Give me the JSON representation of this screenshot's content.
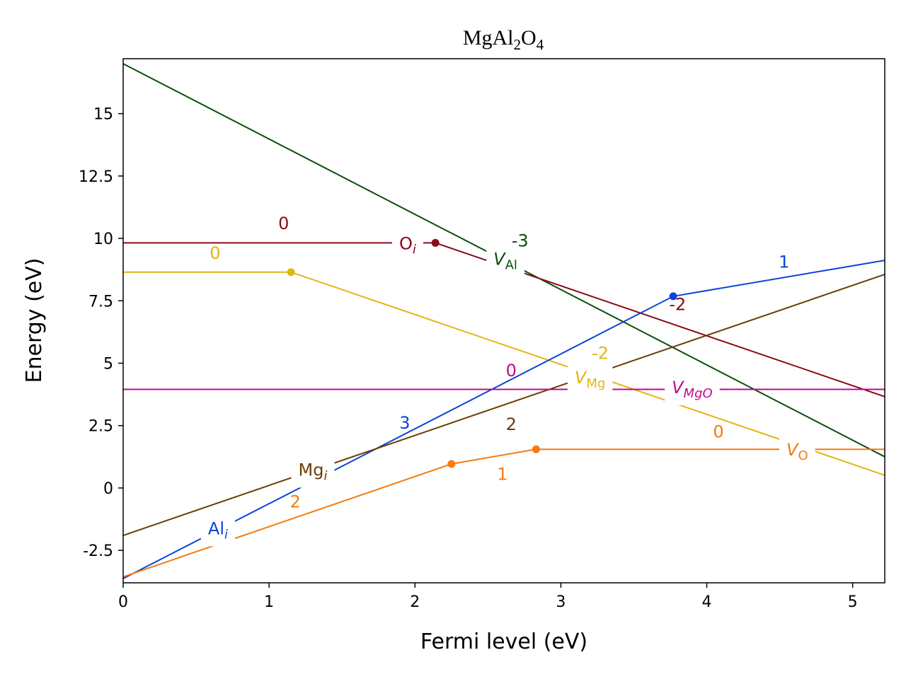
{
  "chart_data": {
    "type": "line",
    "title": {
      "base": "MgAl",
      "sub1": "2",
      "mid": "O",
      "sub2": "4"
    },
    "xlabel": "Fermi level (eV)",
    "ylabel": "Energy (eV)",
    "xlim": [
      0,
      5.22
    ],
    "ylim": [
      -3.8,
      17.2
    ],
    "xticks": [
      0,
      1,
      2,
      3,
      4,
      5
    ],
    "xtick_labels": [
      "0",
      "1",
      "2",
      "3",
      "4",
      "5"
    ],
    "yticks": [
      -2.5,
      0,
      2.5,
      5,
      7.5,
      10,
      12.5,
      15
    ],
    "ytick_labels": [
      "-2.5",
      "0",
      "2.5",
      "5",
      "7.5",
      "10",
      "12.5",
      "15"
    ],
    "grid": false,
    "legend": "none",
    "series": [
      {
        "id": "V_Al",
        "name": {
          "main": "V",
          "sub": "Al",
          "italic_main": true,
          "italic_sub": false
        },
        "color": "#0b4f0b",
        "points": [
          [
            0,
            17.0
          ],
          [
            5.22,
            1.25
          ]
        ],
        "transitions": [],
        "label_at": [
          2.62,
          9.2
        ],
        "charges": [
          {
            "text": "-3",
            "at": [
              2.72,
              9.9
            ]
          }
        ]
      },
      {
        "id": "O_i",
        "name": {
          "main": "O",
          "sub": "i",
          "italic_main": false,
          "italic_sub": true
        },
        "color": "#8b0a1a",
        "points": [
          [
            0,
            9.82
          ],
          [
            2.14,
            9.82
          ],
          [
            5.22,
            3.66
          ]
        ],
        "transitions": [
          [
            2.14,
            9.82
          ]
        ],
        "label_at": [
          1.95,
          9.82
        ],
        "charges": [
          {
            "text": "0",
            "at": [
              1.1,
              10.6
            ]
          },
          {
            "text": "-2",
            "at": [
              3.8,
              7.35
            ]
          }
        ]
      },
      {
        "id": "V_Mg",
        "name": {
          "main": "V",
          "sub": "Mg",
          "italic_main": true,
          "italic_sub": false
        },
        "color": "#e3b511",
        "points": [
          [
            0,
            8.65
          ],
          [
            1.15,
            8.65
          ],
          [
            5.22,
            0.51
          ]
        ],
        "transitions": [
          [
            1.15,
            8.65
          ]
        ],
        "label_at": [
          3.2,
          4.45
        ],
        "charges": [
          {
            "text": "0",
            "at": [
              0.63,
              9.4
            ]
          },
          {
            "text": "-2",
            "at": [
              3.27,
              5.4
            ]
          }
        ]
      },
      {
        "id": "Al_i",
        "name": {
          "main": "Al",
          "sub": "i",
          "italic_main": false,
          "italic_sub": true
        },
        "color": "#0c44d8",
        "points": [
          [
            0,
            -3.63
          ],
          [
            3.77,
            7.68
          ],
          [
            5.22,
            9.12
          ]
        ],
        "transitions": [
          [
            3.77,
            7.68
          ]
        ],
        "label_at": [
          0.65,
          -1.6
        ],
        "charges": [
          {
            "text": "3",
            "at": [
              1.93,
              2.6
            ]
          },
          {
            "text": "1",
            "at": [
              4.53,
              9.05
            ]
          }
        ]
      },
      {
        "id": "Mg_i",
        "name": {
          "main": "Mg",
          "sub": "i",
          "italic_main": false,
          "italic_sub": true
        },
        "color": "#6b3d06",
        "points": [
          [
            0,
            -1.9
          ],
          [
            5.22,
            8.56
          ]
        ],
        "transitions": [],
        "label_at": [
          1.3,
          0.75
        ],
        "charges": [
          {
            "text": "2",
            "at": [
              2.66,
              2.55
            ]
          }
        ]
      },
      {
        "id": "V_MgO",
        "name": {
          "main": "V",
          "sub": "MgO",
          "italic_main": true,
          "italic_sub": true
        },
        "color": "#bf0a8c",
        "points": [
          [
            0,
            3.95
          ],
          [
            5.22,
            3.95
          ]
        ],
        "transitions": [],
        "label_at": [
          3.9,
          4.05
        ],
        "charges": [
          {
            "text": "0",
            "at": [
              2.66,
              4.7
            ]
          }
        ]
      },
      {
        "id": "V_O",
        "name": {
          "main": "V",
          "sub": "O",
          "italic_main": true,
          "italic_sub": false
        },
        "color": "#f57a10",
        "points": [
          [
            0,
            -3.56
          ],
          [
            2.25,
            0.96
          ],
          [
            2.83,
            1.55
          ],
          [
            5.22,
            1.55
          ]
        ],
        "transitions": [
          [
            2.25,
            0.96
          ],
          [
            2.83,
            1.55
          ]
        ],
        "label_at": [
          4.62,
          1.55
        ],
        "charges": [
          {
            "text": "2",
            "at": [
              1.18,
              -0.55
            ]
          },
          {
            "text": "1",
            "at": [
              2.6,
              0.55
            ]
          },
          {
            "text": "0",
            "at": [
              4.08,
              2.25
            ]
          }
        ]
      }
    ]
  }
}
